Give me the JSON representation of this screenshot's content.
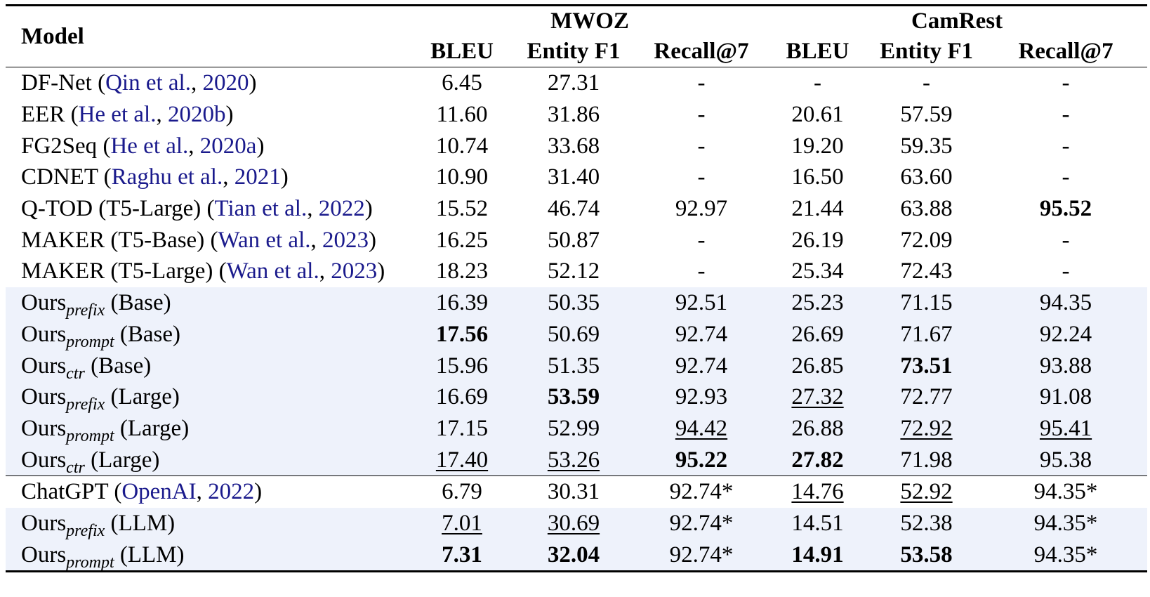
{
  "header": {
    "model_label": "Model",
    "group_mwoz": "MWOZ",
    "group_camrest": "CamRest",
    "cols": [
      "BLEU",
      "Entity F1",
      "Recall@7",
      "BLEU",
      "Entity F1",
      "Recall@7"
    ]
  },
  "rows": [
    {
      "name": "DF-Net",
      "pre": "  (",
      "cite_a": "Qin et al.",
      "mid": ", ",
      "cite_y": "2020",
      "post": ")",
      "sub": "",
      "suffix": "",
      "shade": false,
      "cells": [
        {
          "v": "6.45"
        },
        {
          "v": "27.31"
        },
        {
          "v": "-"
        },
        {
          "v": "-"
        },
        {
          "v": "-"
        },
        {
          "v": "-"
        }
      ]
    },
    {
      "name": "EER",
      "pre": " (",
      "cite_a": "He et al.",
      "mid": ", ",
      "cite_y": "2020b",
      "post": ")",
      "sub": "",
      "suffix": "",
      "shade": false,
      "cells": [
        {
          "v": "11.60"
        },
        {
          "v": "31.86"
        },
        {
          "v": "-"
        },
        {
          "v": "20.61"
        },
        {
          "v": "57.59"
        },
        {
          "v": "-"
        }
      ]
    },
    {
      "name": "FG2Seq",
      "pre": " (",
      "cite_a": "He et al.",
      "mid": ", ",
      "cite_y": "2020a",
      "post": ")",
      "sub": "",
      "suffix": "",
      "shade": false,
      "cells": [
        {
          "v": "10.74"
        },
        {
          "v": "33.68"
        },
        {
          "v": "-"
        },
        {
          "v": "19.20"
        },
        {
          "v": "59.35"
        },
        {
          "v": "-"
        }
      ]
    },
    {
      "name": "CDNET",
      "pre": " (",
      "cite_a": "Raghu et al.",
      "mid": ", ",
      "cite_y": "2021",
      "post": ")",
      "sub": "",
      "suffix": "",
      "shade": false,
      "cells": [
        {
          "v": "10.90"
        },
        {
          "v": "31.40"
        },
        {
          "v": "-"
        },
        {
          "v": "16.50"
        },
        {
          "v": "63.60"
        },
        {
          "v": "-"
        }
      ]
    },
    {
      "name": "Q-TOD (T5-Large)",
      "pre": " (",
      "cite_a": "Tian et al.",
      "mid": ", ",
      "cite_y": "2022",
      "post": ")",
      "sub": "",
      "suffix": "",
      "shade": false,
      "cells": [
        {
          "v": "15.52"
        },
        {
          "v": "46.74"
        },
        {
          "v": "92.97"
        },
        {
          "v": "21.44"
        },
        {
          "v": "63.88"
        },
        {
          "v": "95.52",
          "b": true
        }
      ]
    },
    {
      "name": "MAKER (T5-Base)",
      "pre": " (",
      "cite_a": "Wan et al.",
      "mid": ", ",
      "cite_y": "2023",
      "post": ")",
      "sub": "",
      "suffix": "",
      "shade": false,
      "cells": [
        {
          "v": "16.25"
        },
        {
          "v": "50.87"
        },
        {
          "v": "-"
        },
        {
          "v": "26.19"
        },
        {
          "v": "72.09"
        },
        {
          "v": "-"
        }
      ]
    },
    {
      "name": "MAKER (T5-Large)",
      "pre": " (",
      "cite_a": "Wan et al.",
      "mid": ", ",
      "cite_y": "2023",
      "post": ")",
      "sub": "",
      "suffix": "",
      "shade": false,
      "cells": [
        {
          "v": "18.23"
        },
        {
          "v": "52.12"
        },
        {
          "v": "-"
        },
        {
          "v": "25.34"
        },
        {
          "v": "72.43"
        },
        {
          "v": "-"
        }
      ]
    },
    {
      "name": "Ours",
      "sub": "prefix",
      "suffix": " (Base)",
      "shade": true,
      "cells": [
        {
          "v": "16.39"
        },
        {
          "v": "50.35"
        },
        {
          "v": "92.51"
        },
        {
          "v": "25.23"
        },
        {
          "v": "71.15"
        },
        {
          "v": "94.35"
        }
      ]
    },
    {
      "name": "Ours",
      "sub": "prompt",
      "suffix": " (Base)",
      "shade": true,
      "cells": [
        {
          "v": "17.56",
          "b": true
        },
        {
          "v": "50.69"
        },
        {
          "v": "92.74"
        },
        {
          "v": "26.69"
        },
        {
          "v": "71.67"
        },
        {
          "v": "92.24"
        }
      ]
    },
    {
      "name": "Ours",
      "sub": "ctr",
      "suffix": " (Base)",
      "shade": true,
      "cells": [
        {
          "v": "15.96"
        },
        {
          "v": "51.35"
        },
        {
          "v": "92.74"
        },
        {
          "v": "26.85"
        },
        {
          "v": "73.51",
          "b": true
        },
        {
          "v": "93.88"
        }
      ]
    },
    {
      "name": "Ours",
      "sub": "prefix",
      "suffix": " (Large)",
      "shade": true,
      "cells": [
        {
          "v": "16.69"
        },
        {
          "v": "53.59",
          "b": true
        },
        {
          "v": "92.93"
        },
        {
          "v": "27.32",
          "u": true
        },
        {
          "v": "72.77"
        },
        {
          "v": "91.08"
        }
      ]
    },
    {
      "name": "Ours",
      "sub": "prompt",
      "suffix": " (Large)",
      "shade": true,
      "cells": [
        {
          "v": "17.15"
        },
        {
          "v": "52.99"
        },
        {
          "v": "94.42",
          "u": true
        },
        {
          "v": "26.88"
        },
        {
          "v": "72.92",
          "u": true
        },
        {
          "v": "95.41",
          "u": true
        }
      ]
    },
    {
      "name": "Ours",
      "sub": "ctr",
      "suffix": " (Large)",
      "shade": true,
      "cells": [
        {
          "v": "17.40",
          "u": true
        },
        {
          "v": "53.26",
          "u": true
        },
        {
          "v": "95.22",
          "b": true
        },
        {
          "v": "27.82",
          "b": true
        },
        {
          "v": "71.98"
        },
        {
          "v": "95.38"
        }
      ]
    },
    {
      "name": "ChatGPT",
      "pre": " (",
      "cite_a": "OpenAI",
      "mid": ", ",
      "cite_y": "2022",
      "post": ")",
      "sub": "",
      "suffix": "",
      "shade": false,
      "rule": true,
      "cells": [
        {
          "v": "6.79"
        },
        {
          "v": "30.31"
        },
        {
          "v": "92.74*"
        },
        {
          "v": "14.76",
          "u": true
        },
        {
          "v": "52.92",
          "u": true
        },
        {
          "v": "94.35*"
        }
      ]
    },
    {
      "name": "Ours",
      "sub": "prefix",
      "suffix": " (LLM)",
      "shade": true,
      "cells": [
        {
          "v": "7.01",
          "u": true
        },
        {
          "v": "30.69",
          "u": true
        },
        {
          "v": "92.74*"
        },
        {
          "v": "14.51"
        },
        {
          "v": "52.38"
        },
        {
          "v": "94.35*"
        }
      ]
    },
    {
      "name": "Ours",
      "sub": "prompt",
      "suffix": " (LLM)",
      "shade": true,
      "cells": [
        {
          "v": "7.31",
          "b": true
        },
        {
          "v": "32.04",
          "b": true
        },
        {
          "v": "92.74*"
        },
        {
          "v": "14.91",
          "b": true
        },
        {
          "v": "53.58",
          "b": true
        },
        {
          "v": "94.35*"
        }
      ]
    }
  ]
}
